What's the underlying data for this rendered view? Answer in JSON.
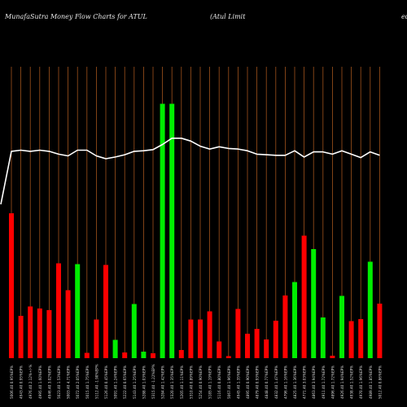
{
  "header": {
    "title": "MunafaSutra  Money Flow  Charts for ATUL",
    "company": "(Atul Limit",
    "edge": "ed"
  },
  "chart_data": {
    "type": "bar",
    "title": "MunafaSutra  Money Flow  Charts for ATUL",
    "bar_scale_max": 100,
    "line_scale_max": 100,
    "colors": {
      "up": "#00ee00",
      "down": "#ff0000",
      "line": "#ffffff",
      "grid": "#a0521c",
      "background": "#000000"
    },
    "bars": [
      {
        "label": "5006.40 0.95%EP%",
        "value": 71.2,
        "color": "red"
      },
      {
        "label": "4943.40 0.95%EP%",
        "value": 20.8,
        "color": "red"
      },
      {
        "label": "4976.40 2.12%+/-%",
        "value": 25.4,
        "color": "red"
      },
      {
        "label": "4995.40 1.60%EP%",
        "value": 24.4,
        "color": "red"
      },
      {
        "label": "4946.40 3.02%EP%",
        "value": 23.6,
        "color": "red"
      },
      {
        "label": "5023.40 1.53%EP%",
        "value": 46.6,
        "color": "red"
      },
      {
        "label": "5003.40 4.71%EP%",
        "value": 33.4,
        "color": "red"
      },
      {
        "label": "5072.40 2.05%EP%",
        "value": 46.2,
        "color": "green"
      },
      {
        "label": "5015.40 1.75%EP%",
        "value": 2.6,
        "color": "red"
      },
      {
        "label": "5112.40 -1.90%EP%",
        "value": 19.0,
        "color": "red"
      },
      {
        "label": "5126.40 0.45%EP%",
        "value": 45.8,
        "color": "red"
      },
      {
        "label": "5091.40 1.24%EP%",
        "value": 9.0,
        "color": "green"
      },
      {
        "label": "5222.40 0.65%EP%",
        "value": 2.8,
        "color": "red"
      },
      {
        "label": "5143.40 1.25%EP%",
        "value": 26.6,
        "color": "green"
      },
      {
        "label": "5288.40 1.03%EP%",
        "value": 3.2,
        "color": "green"
      },
      {
        "label": "5315.40 -1.22%EP%",
        "value": 2.4,
        "color": "red"
      },
      {
        "label": "5284.40 1.42%EP%",
        "value": 125.0,
        "color": "green"
      },
      {
        "label": "5320.40 1.35%EP%",
        "value": 125.0,
        "color": "green"
      },
      {
        "label": "5205.40 1.11%EP%",
        "value": 4.0,
        "color": "red"
      },
      {
        "label": "5310.40 0.89%EP%",
        "value": 19.0,
        "color": "red"
      },
      {
        "label": "5254.40 0.90%EP%",
        "value": 19.0,
        "color": "red"
      },
      {
        "label": "5185.40 1.19%EP%",
        "value": 23.0,
        "color": "red"
      },
      {
        "label": "5116.40 0.80%EP%",
        "value": 8.2,
        "color": "red"
      },
      {
        "label": "5067.40 1.96%EP%",
        "value": 1.0,
        "color": "red"
      },
      {
        "label": "4945.40 1.35%EP%",
        "value": 24.2,
        "color": "red"
      },
      {
        "label": "4895.40 0.90%EP%",
        "value": 12.0,
        "color": "red"
      },
      {
        "label": "4879.40 0.93%EP%",
        "value": 14.4,
        "color": "red"
      },
      {
        "label": "4848.40 0.77%EP%",
        "value": 9.2,
        "color": "red"
      },
      {
        "label": "4832.40 1.47%EP%",
        "value": 18.4,
        "color": "red"
      },
      {
        "label": "4796.40 1.16%EP%",
        "value": 30.8,
        "color": "red"
      },
      {
        "label": "4825.40 1.36%EP%",
        "value": 37.4,
        "color": "green"
      },
      {
        "label": "4771.40 3.03%EP%",
        "value": 60.2,
        "color": "red"
      },
      {
        "label": "4863.40 3.94%EP%",
        "value": 53.6,
        "color": "green"
      },
      {
        "label": "4911.40 1.72%EP%",
        "value": 20.0,
        "color": "green"
      },
      {
        "label": "4896.40 1.72%EP%",
        "value": 1.2,
        "color": "red"
      },
      {
        "label": "4926.40 1.94%EP%",
        "value": 30.6,
        "color": "green"
      },
      {
        "label": "4938.40 1.52%EP%",
        "value": 18.2,
        "color": "red"
      },
      {
        "label": "4970.40 1.96%EP%",
        "value": 19.2,
        "color": "red"
      },
      {
        "label": "4989.40 1.85%EP%",
        "value": 47.4,
        "color": "green"
      },
      {
        "label": "5012.40 0.86%EP%",
        "value": 26.8,
        "color": "red"
      }
    ],
    "line": [
      54.0,
      72.6,
      73.0,
      72.6,
      73.0,
      72.6,
      71.6,
      71.0,
      73.0,
      73.0,
      71.0,
      70.0,
      70.6,
      71.4,
      72.6,
      72.8,
      73.2,
      75.0,
      77.2,
      77.2,
      76.2,
      74.4,
      73.4,
      74.2,
      73.6,
      73.4,
      72.8,
      71.6,
      71.4,
      71.2,
      71.2,
      72.8,
      70.6,
      72.4,
      72.4,
      71.6,
      72.8,
      71.6,
      70.4,
      72.4,
      71.2
    ]
  }
}
